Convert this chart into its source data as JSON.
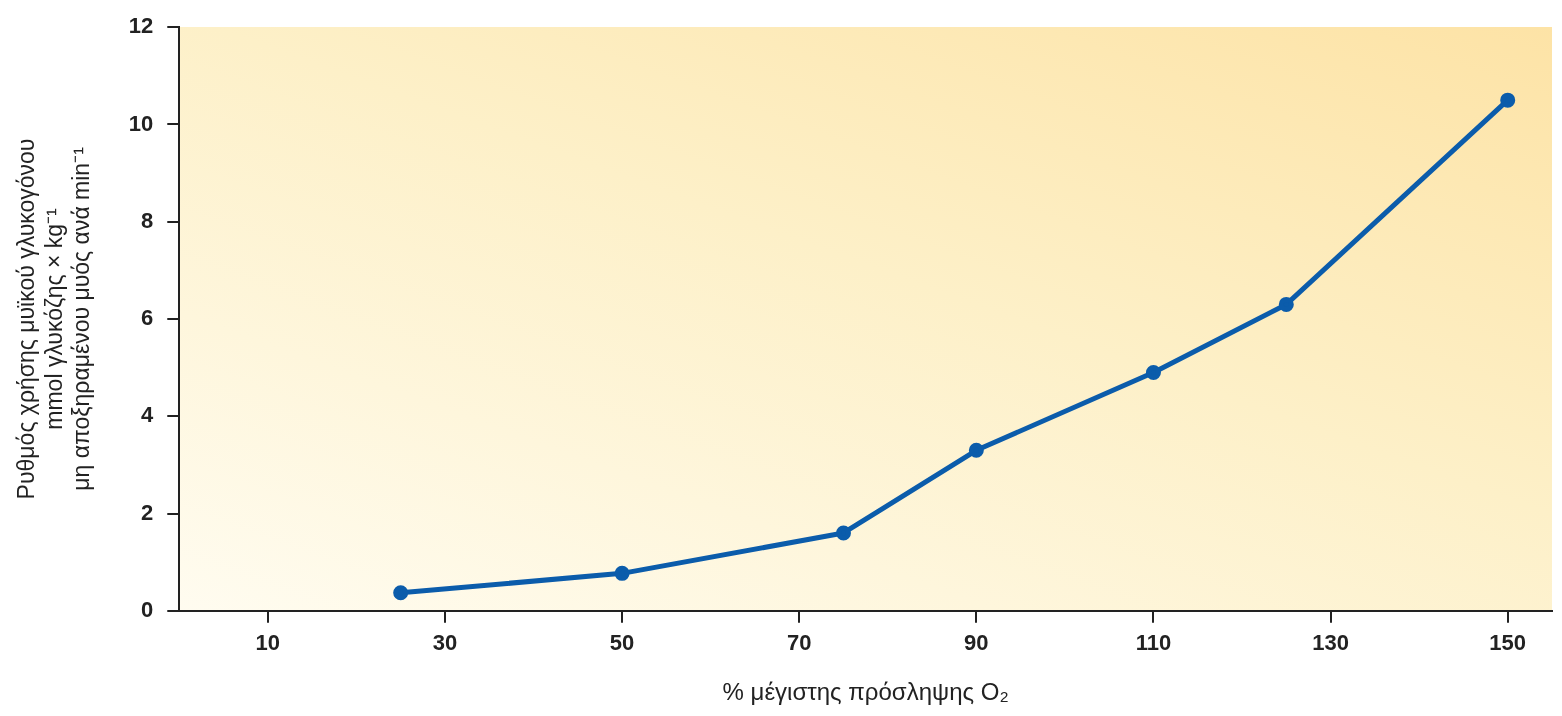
{
  "chart_data": {
    "type": "line",
    "xlabel": "% μέγιστης πρόσληψης O₂",
    "ylabel": [
      "Ρυθμός χρήσης μυϊκού γλυκογόνου",
      "mmol γλυκόζης × kg⁻¹",
      "μη αποξηραμένου μυός ανά min⁻¹"
    ],
    "x": [
      25,
      50,
      75,
      90,
      110,
      125,
      150
    ],
    "series": [
      {
        "color": "#0b5cab",
        "values": [
          0.37,
          0.77,
          1.6,
          3.3,
          4.9,
          6.3,
          10.5
        ]
      }
    ],
    "xlim": [
      0,
      155
    ],
    "xticks": [
      10,
      30,
      50,
      70,
      90,
      110,
      130,
      150
    ],
    "ylim": [
      0,
      12
    ],
    "yticks": [
      0,
      2,
      4,
      6,
      8,
      10,
      12
    ],
    "grid": false,
    "legend": false,
    "marker": "circle",
    "line_style": "solid"
  }
}
